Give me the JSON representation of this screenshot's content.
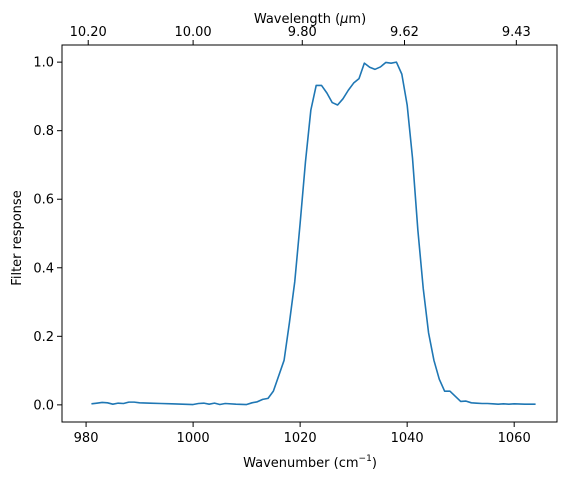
{
  "chart_data": {
    "type": "line",
    "xlabel": "Wavenumber (cm",
    "xlabel_exponent": "−1",
    "xlabel_suffix": ")",
    "ylabel": "Filter response",
    "top_xlabel": "Wavelength (",
    "top_xlabel_mu": "μ",
    "top_xlabel_suffix": "m)",
    "xlim": [
      975.5,
      1068.0
    ],
    "ylim": [
      -0.05,
      1.05
    ],
    "x_ticks": [
      980,
      1000,
      1020,
      1040,
      1060
    ],
    "x_tick_labels": [
      "980",
      "1000",
      "1020",
      "1040",
      "1060"
    ],
    "y_ticks": [
      0.0,
      0.2,
      0.4,
      0.6,
      0.8,
      1.0
    ],
    "y_tick_labels": [
      "0.0",
      "0.2",
      "0.4",
      "0.6",
      "0.8",
      "1.0"
    ],
    "top_ticks": [
      980.4,
      1000.0,
      1020.4,
      1039.5,
      1060.4
    ],
    "top_tick_labels": [
      "10.20",
      "10.00",
      "9.80",
      "9.62",
      "9.43"
    ],
    "grid": false,
    "color": "#1f77b4",
    "series": [
      {
        "x": [
          981,
          982,
          983,
          984,
          985,
          986,
          987,
          988,
          989,
          990,
          992,
          994,
          996,
          998,
          1000,
          1001,
          1002,
          1003,
          1004,
          1005,
          1006,
          1008,
          1010,
          1011,
          1012,
          1013,
          1014,
          1015,
          1016,
          1017,
          1018,
          1019,
          1020,
          1021,
          1022,
          1023,
          1024,
          1025,
          1026,
          1027,
          1028,
          1029,
          1030,
          1031,
          1032,
          1033,
          1034,
          1035,
          1036,
          1037,
          1038,
          1039,
          1040,
          1041,
          1042,
          1043,
          1044,
          1045,
          1046,
          1047,
          1048,
          1049,
          1050,
          1051,
          1052,
          1053,
          1054,
          1055,
          1056,
          1057,
          1058,
          1059,
          1060,
          1062,
          1064
        ],
        "values": [
          0.003,
          0.005,
          0.007,
          0.006,
          0.002,
          0.005,
          0.004,
          0.008,
          0.008,
          0.006,
          0.005,
          0.004,
          0.003,
          0.002,
          0.001,
          0.004,
          0.005,
          0.002,
          0.005,
          0.001,
          0.004,
          0.002,
          0.001,
          0.006,
          0.009,
          0.016,
          0.019,
          0.04,
          0.085,
          0.13,
          0.24,
          0.36,
          0.53,
          0.71,
          0.86,
          0.932,
          0.932,
          0.91,
          0.882,
          0.875,
          0.893,
          0.918,
          0.939,
          0.952,
          0.997,
          0.985,
          0.979,
          0.986,
          0.999,
          0.997,
          1.0,
          0.965,
          0.875,
          0.72,
          0.51,
          0.34,
          0.21,
          0.13,
          0.075,
          0.04,
          0.04,
          0.025,
          0.01,
          0.011,
          0.006,
          0.005,
          0.004,
          0.004,
          0.003,
          0.002,
          0.003,
          0.002,
          0.003,
          0.002,
          0.002
        ]
      }
    ]
  }
}
